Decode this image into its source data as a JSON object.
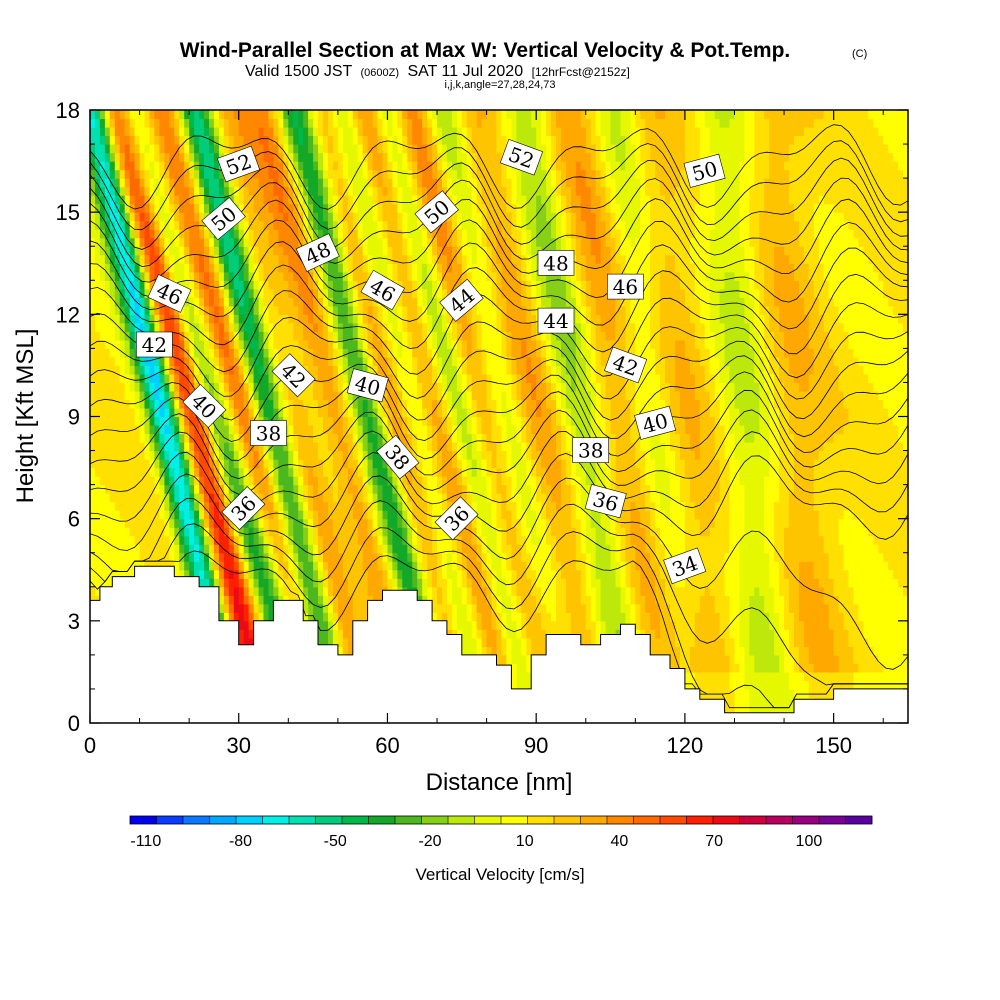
{
  "title": {
    "main": "Wind-Parallel Section at Max W: Vertical Velocity & Pot.Temp.",
    "copyright": "(C)",
    "valid_prefix": "Valid 1500 JST",
    "valid_utc": "(0600Z)",
    "valid_date": "SAT 11 Jul 2020",
    "forecast": "[12hrFcst@2152z]",
    "indices": "i,j,k,angle=27,28,24,73"
  },
  "chart_data": {
    "type": "heatmap",
    "xlabel": "Distance [nm]",
    "ylabel": "Height [Kft MSL]",
    "xlim": [
      0,
      165
    ],
    "ylim": [
      0,
      18
    ],
    "x_ticks": [
      "0",
      "30",
      "60",
      "90",
      "120",
      "150"
    ],
    "y_ticks": [
      "0",
      "3",
      "6",
      "9",
      "12",
      "15",
      "18"
    ],
    "colorbar": {
      "label": "Vertical Velocity [cm/s]",
      "range": [
        -115,
        120
      ],
      "tick_labels": [
        "-110",
        "-80",
        "-50",
        "-20",
        "10",
        "40",
        "70",
        "100"
      ],
      "colors": [
        "#0000ee",
        "#0a3cff",
        "#0a78ff",
        "#00a8ff",
        "#00d0ff",
        "#00f0e8",
        "#00e0b0",
        "#00cc7a",
        "#00b84a",
        "#14a828",
        "#4cb820",
        "#88d018",
        "#bce80c",
        "#e6f800",
        "#ffff00",
        "#ffe000",
        "#ffc400",
        "#ffa800",
        "#ff8800",
        "#ff6a00",
        "#ff4a00",
        "#ff2000",
        "#ee0a14",
        "#d0003c",
        "#b80060",
        "#9a0080",
        "#7a0096",
        "#5a00a0"
      ]
    },
    "terrain_profile": [
      [
        0,
        3.6
      ],
      [
        1,
        3.6
      ],
      [
        2,
        4.0
      ],
      [
        4,
        4.0
      ],
      [
        4.5,
        4.3
      ],
      [
        8,
        4.3
      ],
      [
        9,
        4.6
      ],
      [
        16,
        4.6
      ],
      [
        17,
        4.3
      ],
      [
        20,
        4.3
      ],
      [
        22,
        4.0
      ],
      [
        25,
        4.0
      ],
      [
        26,
        3.0
      ],
      [
        29,
        3.0
      ],
      [
        30,
        2.3
      ],
      [
        32,
        2.3
      ],
      [
        33,
        3.0
      ],
      [
        36,
        3.0
      ],
      [
        37,
        3.6
      ],
      [
        42,
        3.6
      ],
      [
        43,
        3.0
      ],
      [
        45,
        3.0
      ],
      [
        46,
        2.3
      ],
      [
        49,
        2.3
      ],
      [
        50,
        2.0
      ],
      [
        52,
        2.0
      ],
      [
        53,
        3.0
      ],
      [
        55,
        3.0
      ],
      [
        56,
        3.6
      ],
      [
        58,
        3.6
      ],
      [
        59,
        3.9
      ],
      [
        65,
        3.9
      ],
      [
        66,
        3.6
      ],
      [
        68,
        3.6
      ],
      [
        69,
        3.0
      ],
      [
        71,
        3.0
      ],
      [
        72,
        2.6
      ],
      [
        74,
        2.6
      ],
      [
        75,
        2.0
      ],
      [
        81,
        2.0
      ],
      [
        82,
        1.7
      ],
      [
        84,
        1.7
      ],
      [
        85,
        1.0
      ],
      [
        88,
        1.0
      ],
      [
        89,
        2.0
      ],
      [
        91,
        2.0
      ],
      [
        92,
        2.6
      ],
      [
        98,
        2.6
      ],
      [
        99,
        2.3
      ],
      [
        102,
        2.3
      ],
      [
        103,
        2.6
      ],
      [
        106,
        2.6
      ],
      [
        107,
        2.9
      ],
      [
        109,
        2.9
      ],
      [
        110,
        2.6
      ],
      [
        112,
        2.6
      ],
      [
        113,
        2.0
      ],
      [
        116,
        2.0
      ],
      [
        117,
        1.6
      ],
      [
        119,
        1.6
      ],
      [
        120,
        1.0
      ],
      [
        122,
        1.0
      ],
      [
        123,
        0.7
      ],
      [
        127,
        0.7
      ],
      [
        128,
        0.3
      ],
      [
        132,
        0.3
      ],
      [
        133,
        0.3
      ],
      [
        141,
        0.3
      ],
      [
        142,
        0.7
      ],
      [
        149,
        0.7
      ],
      [
        150,
        1.0
      ],
      [
        157,
        1.0
      ],
      [
        158,
        1.0
      ],
      [
        165,
        1.0
      ]
    ],
    "w_bands": [
      {
        "x0": 25,
        "slope": -3.0,
        "amp": 90,
        "width": 2.4
      },
      {
        "x0": 37,
        "slope": -3.5,
        "amp": 55,
        "width": 2.6
      },
      {
        "x0": 46,
        "slope": -3.0,
        "amp": 70,
        "width": 2.6
      },
      {
        "x0": 54,
        "slope": -3.2,
        "amp": 40,
        "width": 3.0
      },
      {
        "x0": 66,
        "slope": -3.0,
        "amp": 60,
        "width": 2.8
      },
      {
        "x0": 75,
        "slope": -3.0,
        "amp": 50,
        "width": 2.6
      },
      {
        "x0": 84,
        "slope": -3.0,
        "amp": 45,
        "width": 2.6
      },
      {
        "x0": 92,
        "slope": -2.6,
        "amp": 30,
        "width": 3.0
      },
      {
        "x0": 106,
        "slope": -2.2,
        "amp": 30,
        "width": 3.6
      },
      {
        "x0": 118,
        "slope": -1.5,
        "amp": 18,
        "width": 3.2
      },
      {
        "x0": 136,
        "slope": -1.0,
        "amp": 20,
        "width": 4.0
      }
    ],
    "theta_contours": {
      "levels_K": [
        33,
        34,
        35,
        36,
        37,
        38,
        39,
        40,
        41,
        42,
        43,
        44,
        45,
        46,
        47,
        48,
        49,
        50,
        51,
        52,
        53
      ],
      "labels": [
        {
          "text": "52",
          "x": 30,
          "y": 16.4,
          "angle": -20
        },
        {
          "text": "50",
          "x": 27,
          "y": 14.8,
          "angle": -40
        },
        {
          "text": "46",
          "x": 16,
          "y": 12.6,
          "angle": 25
        },
        {
          "text": "42",
          "x": 13,
          "y": 11.1,
          "angle": 0
        },
        {
          "text": "40",
          "x": 23,
          "y": 9.3,
          "angle": 45
        },
        {
          "text": "36",
          "x": 31,
          "y": 6.3,
          "angle": -45
        },
        {
          "text": "38",
          "x": 36,
          "y": 8.5,
          "angle": 0
        },
        {
          "text": "42",
          "x": 41,
          "y": 10.2,
          "angle": 45
        },
        {
          "text": "48",
          "x": 46,
          "y": 13.8,
          "angle": -25
        },
        {
          "text": "40",
          "x": 56,
          "y": 9.9,
          "angle": 15
        },
        {
          "text": "46",
          "x": 59,
          "y": 12.7,
          "angle": 30
        },
        {
          "text": "38",
          "x": 62,
          "y": 7.8,
          "angle": 50
        },
        {
          "text": "50",
          "x": 70,
          "y": 15.0,
          "angle": -40
        },
        {
          "text": "44",
          "x": 75,
          "y": 12.4,
          "angle": -40
        },
        {
          "text": "36",
          "x": 74,
          "y": 6.0,
          "angle": -45
        },
        {
          "text": "52",
          "x": 87,
          "y": 16.6,
          "angle": 20
        },
        {
          "text": "48",
          "x": 94,
          "y": 13.5,
          "angle": 0
        },
        {
          "text": "44",
          "x": 94,
          "y": 11.8,
          "angle": 0
        },
        {
          "text": "38",
          "x": 101,
          "y": 8.0,
          "angle": 0
        },
        {
          "text": "36",
          "x": 104,
          "y": 6.5,
          "angle": 15
        },
        {
          "text": "46",
          "x": 108,
          "y": 12.8,
          "angle": 0
        },
        {
          "text": "42",
          "x": 108,
          "y": 10.5,
          "angle": 20
        },
        {
          "text": "40",
          "x": 114,
          "y": 8.8,
          "angle": -15
        },
        {
          "text": "34",
          "x": 120,
          "y": 4.6,
          "angle": -20
        },
        {
          "text": "50",
          "x": 124,
          "y": 16.2,
          "angle": -15
        }
      ]
    },
    "grid": false,
    "legend": "colorbar-bottom"
  }
}
